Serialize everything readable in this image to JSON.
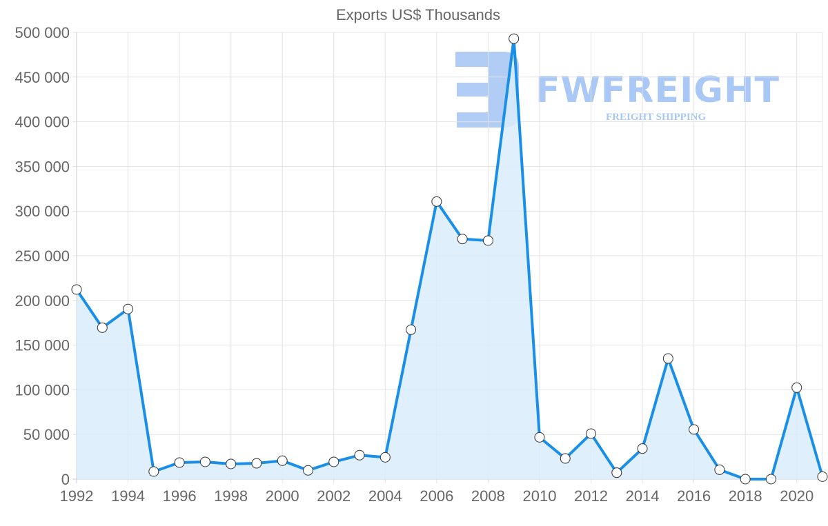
{
  "chart_data": {
    "type": "area",
    "title": "Exports US$ Thousands",
    "xlabel": "",
    "ylabel": "",
    "x": [
      1992,
      1993,
      1994,
      1995,
      1996,
      1997,
      1998,
      1999,
      2000,
      2001,
      2002,
      2003,
      2004,
      2005,
      2006,
      2007,
      2008,
      2009,
      2010,
      2011,
      2012,
      2013,
      2014,
      2015,
      2016,
      2017,
      2018,
      2019,
      2020,
      2021
    ],
    "series": [
      {
        "name": "Exports US$ Thousands",
        "values": [
          212200,
          169500,
          190400,
          8500,
          18500,
          19300,
          17000,
          17700,
          20600,
          9800,
          19300,
          26800,
          24400,
          167200,
          310700,
          268800,
          267000,
          493000,
          46800,
          23100,
          50900,
          7200,
          34200,
          135000,
          55600,
          10500,
          0,
          0,
          102400,
          2800
        ]
      }
    ],
    "x_tick_labels": [
      "1992",
      "1994",
      "1996",
      "1998",
      "2000",
      "2002",
      "2004",
      "2006",
      "2008",
      "2010",
      "2012",
      "2014",
      "2016",
      "2018",
      "2020"
    ],
    "y_tick_labels": [
      "0",
      "50 000",
      "100 000",
      "150 000",
      "200 000",
      "250 000",
      "300 000",
      "350 000",
      "400 000",
      "450 000",
      "500 000"
    ],
    "ylim": [
      0,
      500000
    ],
    "grid": true,
    "legend": "none",
    "colors": {
      "line": "#1a8fe8",
      "fill": "#d9ecfc",
      "point_fill": "#ffffff",
      "point_stroke": "#333333",
      "grid": "#e3e3e3",
      "text": "#666666"
    }
  },
  "watermark": {
    "brand": "FWFREIGHT",
    "tagline": "FREIGHT SHIPPING"
  }
}
